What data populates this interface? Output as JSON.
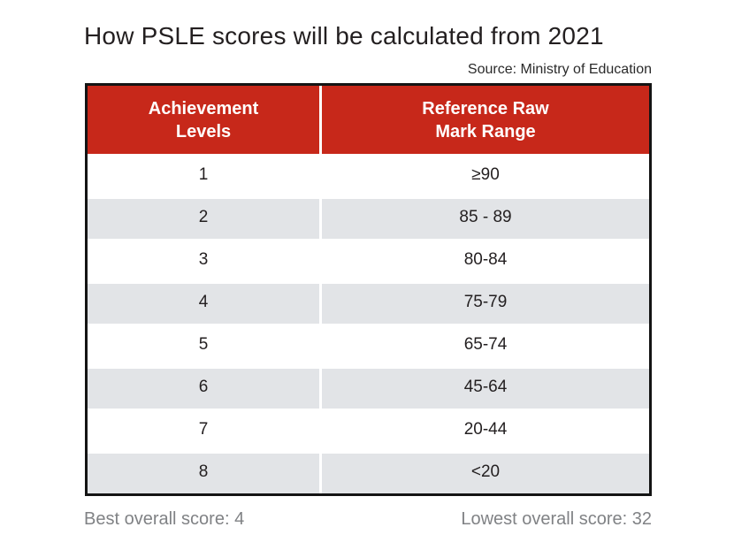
{
  "title": "How PSLE scores will be calculated from 2021",
  "source": "Source: Ministry of Education",
  "table": {
    "header": {
      "col1_line1": "Achievement",
      "col1_line2": "Levels",
      "col2_line1": "Reference Raw",
      "col2_line2": "Mark Range"
    },
    "rows": [
      {
        "level": "1",
        "range": "≥90"
      },
      {
        "level": "2",
        "range": "85 - 89"
      },
      {
        "level": "3",
        "range": "80-84"
      },
      {
        "level": "4",
        "range": "75-79"
      },
      {
        "level": "5",
        "range": "65-74"
      },
      {
        "level": "6",
        "range": "45-64"
      },
      {
        "level": "7",
        "range": "20-44"
      },
      {
        "level": "8",
        "range": "<20"
      }
    ]
  },
  "footer": {
    "left": "Best overall score: 4",
    "right": "Lowest overall score: 32"
  },
  "colors": {
    "header_red": "#c7281a",
    "row_gray": "#e2e4e7",
    "border_black": "#141414",
    "footer_gray": "#808285"
  },
  "chart_data": {
    "type": "table",
    "title": "How PSLE scores will be calculated from 2021",
    "source": "Source: Ministry of Education",
    "columns": [
      "Achievement Levels",
      "Reference Raw Mark Range"
    ],
    "rows": [
      [
        "1",
        "≥90"
      ],
      [
        "2",
        "85 - 89"
      ],
      [
        "3",
        "80-84"
      ],
      [
        "4",
        "75-79"
      ],
      [
        "5",
        "65-74"
      ],
      [
        "6",
        "45-64"
      ],
      [
        "7",
        "20-44"
      ],
      [
        "8",
        "<20"
      ]
    ],
    "notes": [
      "Best overall score: 4",
      "Lowest overall score: 32"
    ]
  }
}
